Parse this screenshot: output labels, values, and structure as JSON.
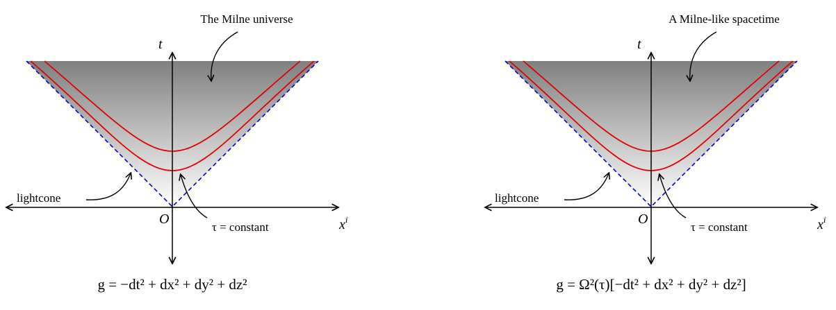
{
  "panels": [
    {
      "title": "The Milne universe",
      "axis_t": "t",
      "axis_x_base": "x",
      "axis_x_sup": "i",
      "origin": "O",
      "lightcone_label": "lightcone",
      "tau_label": "τ = constant",
      "metric": "g  =  −dt² + dx² + dy² + dz²"
    },
    {
      "title": "A Milne-like spacetime",
      "axis_t": "t",
      "axis_x_base": "x",
      "axis_x_sup": "i",
      "origin": "O",
      "lightcone_label": "lightcone",
      "tau_label": "τ = constant",
      "metric": "g  =  Ω²(τ)[−dt² + dx² + dy² + dz²]"
    }
  ],
  "colors": {
    "hyperbola": "#e00000",
    "lightcone": "#0000cc",
    "gradient_top": "#808080",
    "gradient_bottom": "#ffffff",
    "ink": "#000000"
  }
}
